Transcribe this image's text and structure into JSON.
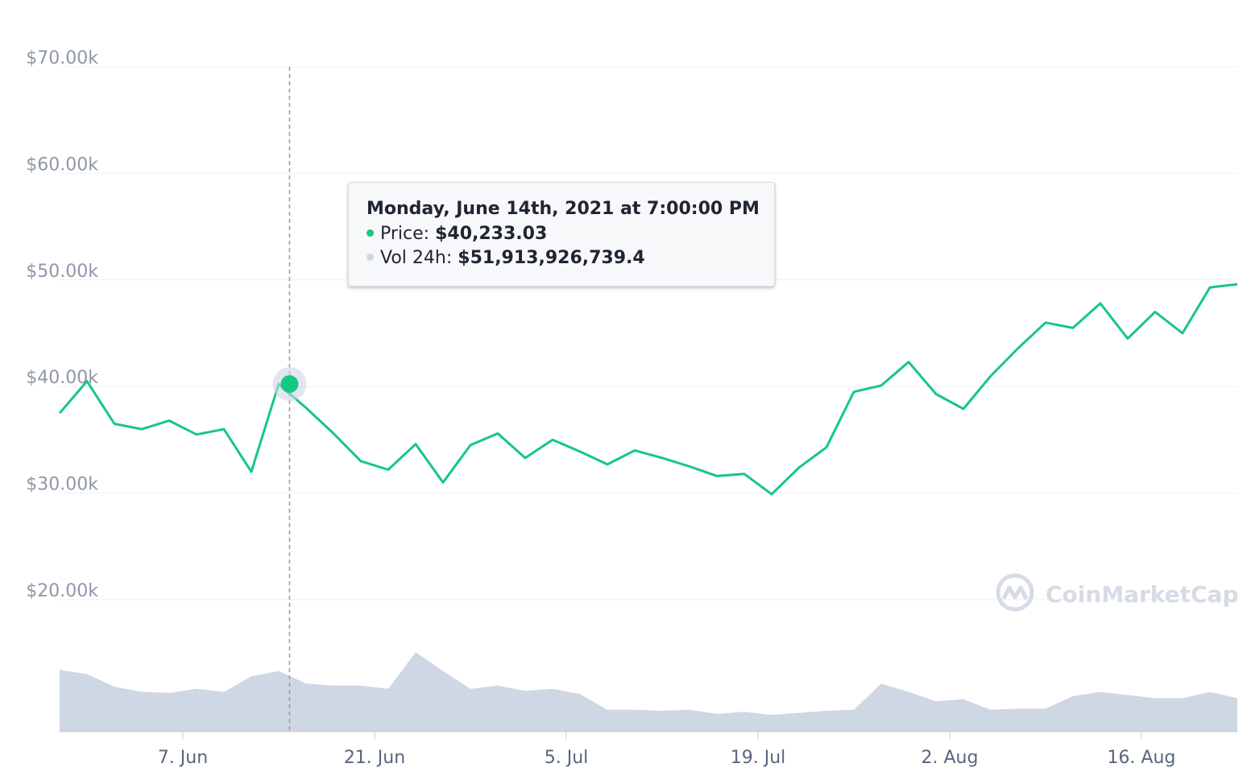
{
  "chart_data": {
    "type": "area",
    "price_series": {
      "name": "Price",
      "color": "#16c784",
      "x": [
        "2021-05-29",
        "2021-05-31",
        "2021-06-02",
        "2021-06-04",
        "2021-06-06",
        "2021-06-08",
        "2021-06-10",
        "2021-06-12",
        "2021-06-14",
        "2021-06-16",
        "2021-06-18",
        "2021-06-20",
        "2021-06-22",
        "2021-06-24",
        "2021-06-26",
        "2021-06-28",
        "2021-06-30",
        "2021-07-02",
        "2021-07-04",
        "2021-07-06",
        "2021-07-08",
        "2021-07-10",
        "2021-07-12",
        "2021-07-14",
        "2021-07-16",
        "2021-07-18",
        "2021-07-20",
        "2021-07-22",
        "2021-07-24",
        "2021-07-26",
        "2021-07-28",
        "2021-07-30",
        "2021-08-01",
        "2021-08-03",
        "2021-08-05",
        "2021-08-07",
        "2021-08-09",
        "2021-08-11",
        "2021-08-13",
        "2021-08-15",
        "2021-08-17",
        "2021-08-19",
        "2021-08-21",
        "2021-08-23"
      ],
      "values": [
        37500,
        40500,
        36500,
        36000,
        36800,
        35500,
        36000,
        32000,
        40233,
        38000,
        35600,
        33000,
        32200,
        34600,
        31000,
        34500,
        35600,
        33300,
        35000,
        33900,
        32700,
        34000,
        33300,
        32500,
        31600,
        31800,
        29900,
        32400,
        34300,
        39500,
        40100,
        42300,
        39300,
        37900,
        41000,
        43600,
        46000,
        45500,
        47800,
        44500,
        47000,
        45000,
        49300,
        49600
      ]
    },
    "volume_series": {
      "name": "Vol 24h",
      "color": "#cfd6e4",
      "x": [
        "2021-05-29",
        "2021-05-31",
        "2021-06-02",
        "2021-06-04",
        "2021-06-06",
        "2021-06-08",
        "2021-06-10",
        "2021-06-12",
        "2021-06-14",
        "2021-06-16",
        "2021-06-18",
        "2021-06-20",
        "2021-06-22",
        "2021-06-24",
        "2021-06-26",
        "2021-06-28",
        "2021-06-30",
        "2021-07-02",
        "2021-07-04",
        "2021-07-06",
        "2021-07-08",
        "2021-07-10",
        "2021-07-12",
        "2021-07-14",
        "2021-07-16",
        "2021-07-18",
        "2021-07-20",
        "2021-07-22",
        "2021-07-24",
        "2021-07-26",
        "2021-07-28",
        "2021-07-30",
        "2021-08-01",
        "2021-08-03",
        "2021-08-05",
        "2021-08-07",
        "2021-08-09",
        "2021-08-11",
        "2021-08-13",
        "2021-08-15",
        "2021-08-17",
        "2021-08-19",
        "2021-08-21",
        "2021-08-23"
      ],
      "values": [
        59,
        55,
        43,
        38,
        37,
        41,
        38,
        53,
        58,
        46,
        44,
        44,
        41,
        76,
        58,
        41,
        44,
        39,
        41,
        36,
        21,
        21,
        20,
        21,
        17,
        19,
        16,
        18,
        20,
        21,
        46,
        38,
        29,
        31,
        21,
        22,
        22,
        34,
        38,
        35,
        32,
        32,
        38,
        32
      ]
    },
    "y_ticks": [
      "$20.00k",
      "$30.00k",
      "$40.00k",
      "$50.00k",
      "$60.00k",
      "$70.00k"
    ],
    "y_tick_values": [
      20000,
      30000,
      40000,
      50000,
      60000,
      70000
    ],
    "ylim": [
      20000,
      70000
    ],
    "x_ticks": [
      "7. Jun",
      "21. Jun",
      "5. Jul",
      "19. Jul",
      "2. Aug",
      "16. Aug"
    ],
    "x_tick_dates": [
      "2021-06-07",
      "2021-06-21",
      "2021-07-05",
      "2021-07-19",
      "2021-08-02",
      "2021-08-16"
    ],
    "x_range": [
      "2021-05-29",
      "2021-08-23"
    ],
    "grid": true,
    "hover_date": "2021-06-14T19:00:00",
    "tooltip": {
      "title": "Monday, June 14th, 2021 at 7:00:00 PM",
      "rows": [
        {
          "label": "Price:",
          "value": "$40,233.03"
        },
        {
          "label": "Vol 24h:",
          "value": "$51,913,926,739.4"
        }
      ]
    },
    "watermark": "CoinMarketCap",
    "colors": {
      "price": "#16c784",
      "volume": "#cfd6e4",
      "grid": "#eef0f4",
      "dot": "#cfd6e4"
    }
  }
}
